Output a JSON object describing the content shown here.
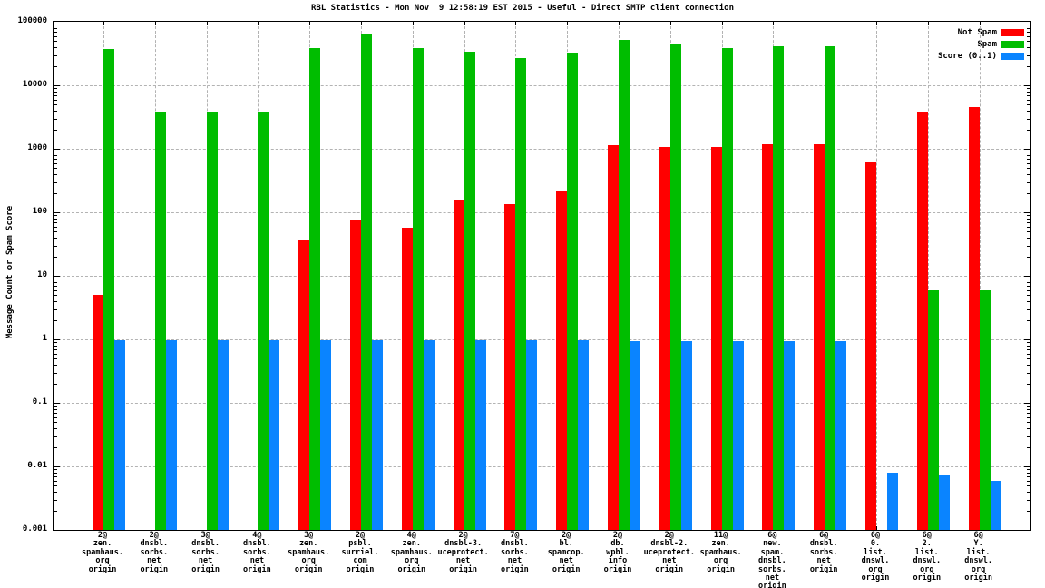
{
  "title": "RBL Statistics - Mon Nov  9 12:58:19 EST 2015 - Useful - Direct SMTP client connection",
  "chart_data": {
    "type": "bar",
    "title": "RBL Statistics - Mon Nov  9 12:58:19 EST 2015 - Useful - Direct SMTP client connection",
    "ylabel": "Message Count or Spam Score",
    "xlabel": "",
    "yscale": "log",
    "ylim": [
      0.001,
      100000
    ],
    "ytick_labels": [
      "100000",
      "10000",
      "1000",
      "100",
      "10",
      "1",
      "0.1",
      "0.01",
      "0.001"
    ],
    "grid": true,
    "legend_position": "top-right",
    "legend": [
      {
        "name": "Not Spam",
        "color": "#ff0000"
      },
      {
        "name": "Spam",
        "color": "#00bd00"
      },
      {
        "name": "Score (0..1)",
        "color": "#0a84ff"
      }
    ],
    "categories": [
      "2@zen.spamhaus.org origin",
      "2@dnsbl.sorbs.net origin",
      "3@dnsbl.sorbs.net origin",
      "4@dnsbl.sorbs.net origin",
      "3@zen.spamhaus.org origin",
      "2@psbl.surriel.com origin",
      "4@zen.spamhaus.org origin",
      "2@dnsbl-3.uceprotect.net origin",
      "7@dnsbl.sorbs.net origin",
      "2@bl.spamcop.net origin",
      "2@db.wpbl.info origin",
      "2@dnsbl-2.uceprotect.net origin",
      "11@zen.spamhaus.org origin",
      "6@new.spam.dnsbl.sorbs.net origin",
      "6@dnsbl.sorbs.net origin",
      "6@0.list.dnswl.org origin",
      "6@2.list.dnswl.org origin",
      "6@Y.list.dnswl.org origin"
    ],
    "category_lines": [
      [
        "2@",
        "zen.",
        "spamhaus.",
        "org",
        "origin"
      ],
      [
        "2@",
        "dnsbl.",
        "sorbs.",
        "net",
        "origin"
      ],
      [
        "3@",
        "dnsbl.",
        "sorbs.",
        "net",
        "origin"
      ],
      [
        "4@",
        "dnsbl.",
        "sorbs.",
        "net",
        "origin"
      ],
      [
        "3@",
        "zen.",
        "spamhaus.",
        "org",
        "origin"
      ],
      [
        "2@",
        "psbl.",
        "surriel.",
        "com",
        "origin"
      ],
      [
        "4@",
        "zen.",
        "spamhaus.",
        "org",
        "origin"
      ],
      [
        "2@",
        "dnsbl-3.",
        "uceprotect.",
        "net",
        "origin"
      ],
      [
        "7@",
        "dnsbl.",
        "sorbs.",
        "net",
        "origin"
      ],
      [
        "2@",
        "bl.",
        "spamcop.",
        "net",
        "origin"
      ],
      [
        "2@",
        "db.",
        "wpbl.",
        "info",
        "origin"
      ],
      [
        "2@",
        "dnsbl-2.",
        "uceprotect.",
        "net",
        "origin"
      ],
      [
        "11@",
        "zen.",
        "spamhaus.",
        "org",
        "origin"
      ],
      [
        "6@",
        "new.",
        "spam.",
        "dnsbl.",
        "sorbs.",
        "net",
        "origin"
      ],
      [
        "6@",
        "dnsbl.",
        "sorbs.",
        "net",
        "origin"
      ],
      [
        "6@",
        "0.",
        "list.",
        "dnswl.",
        "org",
        "origin"
      ],
      [
        "6@",
        "2.",
        "list.",
        "dnswl.",
        "org",
        "origin"
      ],
      [
        "6@",
        "Y.",
        "list.",
        "dnswl.",
        "org",
        "origin"
      ]
    ],
    "series": [
      {
        "name": "Not Spam",
        "color": "#ff0000",
        "values": [
          5,
          0,
          0,
          0,
          36,
          77,
          57,
          158,
          133,
          220,
          1130,
          1070,
          1060,
          1180,
          1170,
          620,
          3800,
          4500
        ]
      },
      {
        "name": "Spam",
        "color": "#00bd00",
        "values": [
          37000,
          3900,
          3900,
          3900,
          38000,
          63000,
          39000,
          34000,
          27000,
          33000,
          52000,
          45000,
          38000,
          41000,
          41000,
          0,
          6,
          6
        ]
      },
      {
        "name": "Score (0..1)",
        "color": "#0a84ff",
        "values": [
          0.97,
          0.97,
          0.97,
          0.97,
          0.97,
          0.97,
          0.97,
          0.97,
          0.97,
          0.97,
          0.95,
          0.95,
          0.95,
          0.95,
          0.95,
          0.008,
          0.0075,
          0.006
        ]
      }
    ]
  }
}
